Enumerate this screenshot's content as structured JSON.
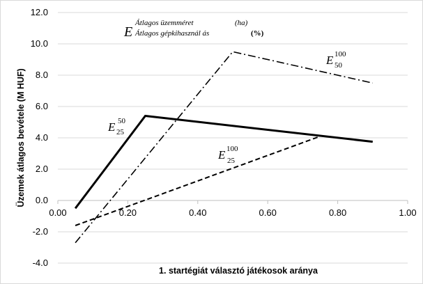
{
  "chart_data": {
    "type": "line",
    "xlabel": "1. startégiát választó játékosok aránya",
    "ylabel": "Üzemek átlagos bevétele (M HUF)",
    "xlim": [
      0.0,
      1.0
    ],
    "ylim": [
      -4.0,
      12.0
    ],
    "x_ticks": [
      "0.00",
      "0.20",
      "0.40",
      "0.60",
      "0.80",
      "1.00"
    ],
    "y_ticks": [
      "-4.0",
      "-2.0",
      "0.0",
      "2.0",
      "4.0",
      "6.0",
      "8.0",
      "10.0",
      "12.0"
    ],
    "grid": "horizontal",
    "annotation": {
      "symbol": "E",
      "superscript": "Átlagos üzemméret",
      "superscript_unit": "(ha)",
      "subscript": "Átlagos gépkihasznál ás",
      "subscript_unit": "(%)"
    },
    "series": [
      {
        "label_base": "E",
        "label_sup": "50",
        "label_sub": "25",
        "style": "solid",
        "x": [
          0.05,
          0.25,
          0.9
        ],
        "y": [
          -0.5,
          5.4,
          3.75
        ]
      },
      {
        "label_base": "E",
        "label_sup": "100",
        "label_sub": "50",
        "style": "dashdot",
        "x": [
          0.05,
          0.5,
          0.9
        ],
        "y": [
          -2.7,
          9.5,
          7.5
        ]
      },
      {
        "label_base": "E",
        "label_sup": "100",
        "label_sub": "25",
        "style": "dashed",
        "x": [
          0.05,
          0.75
        ],
        "y": [
          -1.6,
          4.1
        ]
      }
    ]
  }
}
